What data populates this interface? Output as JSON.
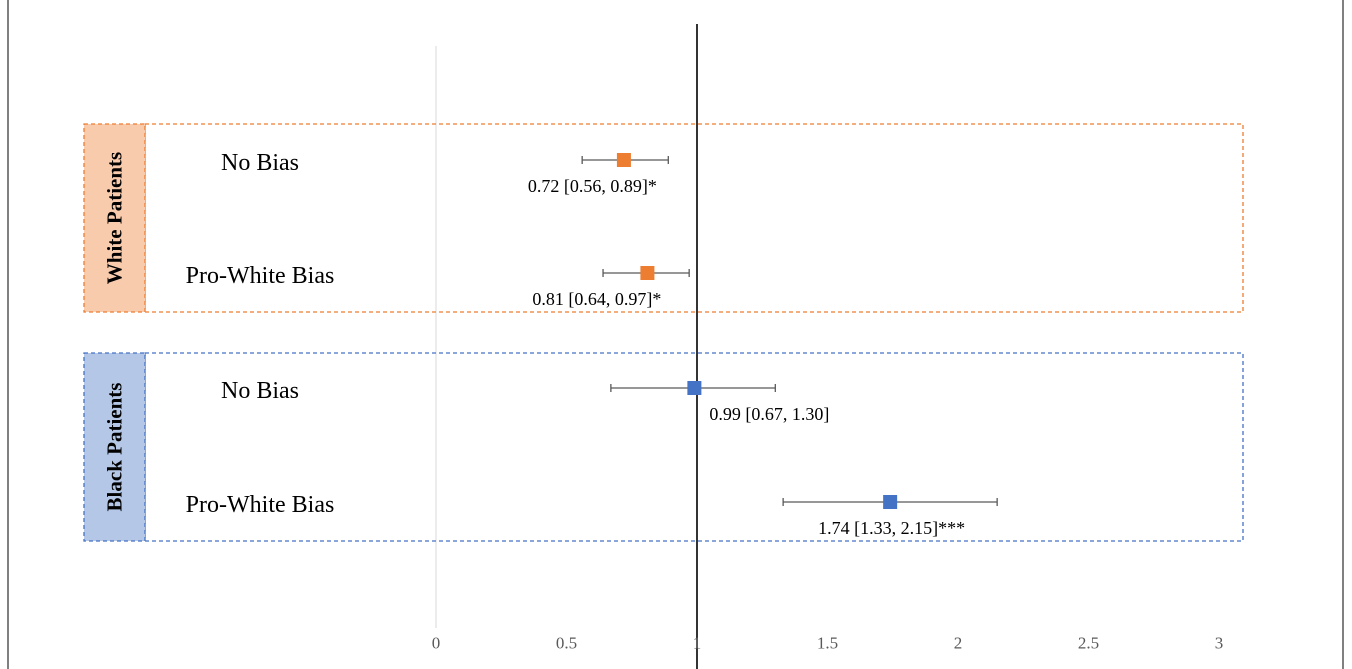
{
  "chart_data": {
    "type": "scatter",
    "subtype": "forest-plot",
    "title": "",
    "xlabel": "",
    "ylabel": "",
    "xlim": [
      0,
      3
    ],
    "x_ticks": [
      "0",
      "0.5",
      "1",
      "1.5",
      "2",
      "2.5",
      "3"
    ],
    "reference_line": 1,
    "grid": false,
    "legend": "none",
    "groups": [
      {
        "name": "White Patients",
        "color": "#ED7D31",
        "fill": "#F8CBAD",
        "rows": [
          {
            "label": "No Bias",
            "estimate": 0.72,
            "ci_low": 0.56,
            "ci_high": 0.89,
            "annotation": "0.72 [0.56, 0.89]*"
          },
          {
            "label": "Pro-White Bias",
            "estimate": 0.81,
            "ci_low": 0.64,
            "ci_high": 0.97,
            "annotation": "0.81 [0.64, 0.97]*"
          }
        ]
      },
      {
        "name": "Black Patients",
        "color": "#4472C4",
        "fill": "#B4C7E7",
        "rows": [
          {
            "label": "No Bias",
            "estimate": 0.99,
            "ci_low": 0.67,
            "ci_high": 1.3,
            "annotation": "0.99 [0.67, 1.30]"
          },
          {
            "label": "Pro-White Bias",
            "estimate": 1.74,
            "ci_low": 1.33,
            "ci_high": 2.15,
            "annotation": "1.74 [1.33, 2.15]***"
          }
        ]
      }
    ]
  }
}
